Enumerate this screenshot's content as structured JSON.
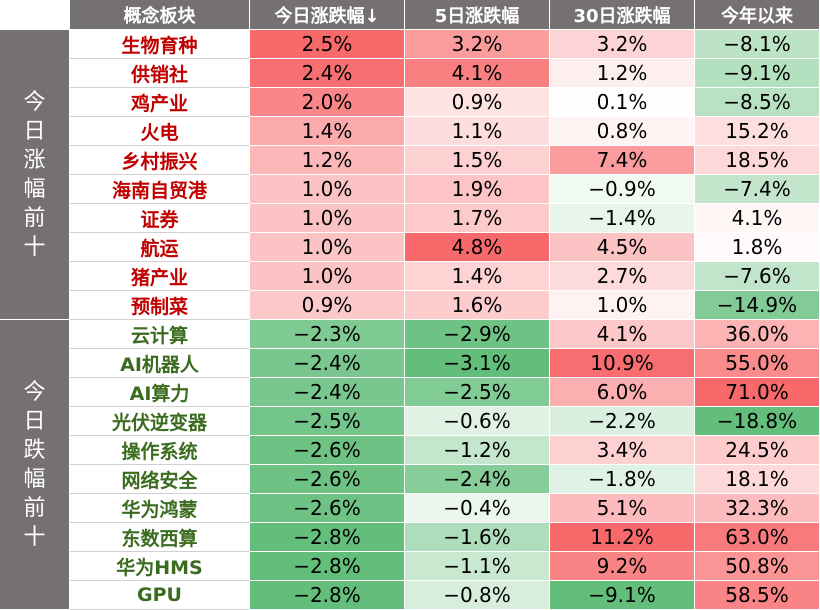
{
  "chart_data": {
    "type": "table",
    "columns": [
      "概念板块",
      "今日涨跌幅↓",
      "5日涨跌幅",
      "30日涨跌幅",
      "今年以来"
    ],
    "groups": [
      {
        "label": "今日涨幅前十",
        "chars": [
          "今",
          "日",
          "涨",
          "幅",
          "前",
          "十"
        ],
        "name_color": "#c00000"
      },
      {
        "label": "今日跌幅前十",
        "chars": [
          "今",
          "日",
          "跌",
          "幅",
          "前",
          "十"
        ],
        "name_color": "#3a6b1e"
      }
    ],
    "rows": [
      {
        "name": "生物育种",
        "values": [
          "2.5%",
          "3.2%",
          "3.2%",
          "−8.1%"
        ],
        "group": 0
      },
      {
        "name": "供销社",
        "values": [
          "2.4%",
          "4.1%",
          "1.2%",
          "−9.1%"
        ],
        "group": 0
      },
      {
        "name": "鸡产业",
        "values": [
          "2.0%",
          "0.9%",
          "0.1%",
          "−8.5%"
        ],
        "group": 0
      },
      {
        "name": "火电",
        "values": [
          "1.4%",
          "1.1%",
          "0.8%",
          "15.2%"
        ],
        "group": 0
      },
      {
        "name": "乡村振兴",
        "values": [
          "1.2%",
          "1.5%",
          "7.4%",
          "18.5%"
        ],
        "group": 0
      },
      {
        "name": "海南自贸港",
        "values": [
          "1.0%",
          "1.9%",
          "−0.9%",
          "−7.4%"
        ],
        "group": 0
      },
      {
        "name": "证券",
        "values": [
          "1.0%",
          "1.7%",
          "−1.4%",
          "4.1%"
        ],
        "group": 0
      },
      {
        "name": "航运",
        "values": [
          "1.0%",
          "4.8%",
          "4.5%",
          "1.8%"
        ],
        "group": 0
      },
      {
        "name": "猪产业",
        "values": [
          "1.0%",
          "1.4%",
          "2.7%",
          "−7.6%"
        ],
        "group": 0
      },
      {
        "name": "预制菜",
        "values": [
          "0.9%",
          "1.6%",
          "1.0%",
          "−14.9%"
        ],
        "group": 0
      },
      {
        "name": "云计算",
        "values": [
          "−2.3%",
          "−2.9%",
          "4.1%",
          "36.0%"
        ],
        "group": 1
      },
      {
        "name": "AI机器人",
        "values": [
          "−2.4%",
          "−3.1%",
          "10.9%",
          "55.0%"
        ],
        "group": 1
      },
      {
        "name": "AI算力",
        "values": [
          "−2.4%",
          "−2.5%",
          "6.0%",
          "71.0%"
        ],
        "group": 1
      },
      {
        "name": "光伏逆变器",
        "values": [
          "−2.5%",
          "−0.6%",
          "−2.2%",
          "−18.8%"
        ],
        "group": 1
      },
      {
        "name": "操作系统",
        "values": [
          "−2.6%",
          "−1.2%",
          "3.4%",
          "24.5%"
        ],
        "group": 1
      },
      {
        "name": "网络安全",
        "values": [
          "−2.6%",
          "−2.4%",
          "−1.8%",
          "18.1%"
        ],
        "group": 1
      },
      {
        "name": "华为鸿蒙",
        "values": [
          "−2.6%",
          "−0.4%",
          "5.1%",
          "32.3%"
        ],
        "group": 1
      },
      {
        "name": "东数西算",
        "values": [
          "−2.8%",
          "−1.6%",
          "11.2%",
          "63.0%"
        ],
        "group": 1
      },
      {
        "name": "华为HMS",
        "values": [
          "−2.8%",
          "−1.1%",
          "9.2%",
          "50.8%"
        ],
        "group": 1
      },
      {
        "name": "GPU",
        "values": [
          "−2.8%",
          "−0.8%",
          "−9.1%",
          "58.5%"
        ],
        "group": 1
      }
    ],
    "color_scale": {
      "positive": "#f8696b",
      "negative": "#63be7b",
      "neutral": "#ffffff"
    }
  }
}
